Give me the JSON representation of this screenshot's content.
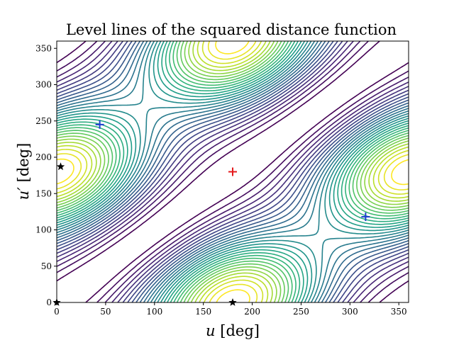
{
  "chart_data": {
    "type": "contour",
    "title": "Level lines of the squared distance function",
    "xlabel": "u",
    "xlabel_unit": "[deg]",
    "ylabel": "u′",
    "ylabel_unit": "[deg]",
    "xlim": [
      0,
      360
    ],
    "ylim": [
      0,
      360
    ],
    "xticks": [
      0,
      50,
      100,
      150,
      200,
      250,
      300,
      350
    ],
    "yticks": [
      0,
      50,
      100,
      150,
      200,
      250,
      300,
      350
    ],
    "colormap": "viridis",
    "levels": 30,
    "maximum": {
      "x": 180,
      "y": 180,
      "marker": "+",
      "color": "#e41a1c"
    },
    "saddle_points": [
      {
        "x": 44,
        "y": 245,
        "marker": "+",
        "color": "#1f3fd0"
      },
      {
        "x": 316,
        "y": 118,
        "marker": "+",
        "color": "#1f3fd0"
      }
    ],
    "minima": [
      {
        "x": 4,
        "y": 187,
        "marker": "star",
        "color": "#000000"
      },
      {
        "x": 180,
        "y": 0,
        "marker": "star",
        "color": "#000000"
      },
      {
        "x": 0,
        "y": 0,
        "marker": "star",
        "color": "#000000"
      }
    ]
  }
}
